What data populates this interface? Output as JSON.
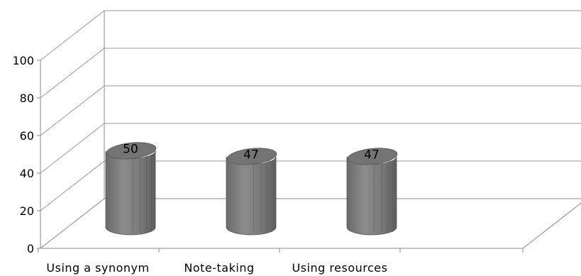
{
  "chart_data": {
    "type": "bar",
    "style": "3d-cylinder",
    "categories": [
      "Using a synonym",
      "Note-taking",
      "Using resources"
    ],
    "values": [
      50,
      47,
      47
    ],
    "data_labels": [
      "50",
      "47",
      "47"
    ],
    "ylim": [
      0,
      100
    ],
    "yticks": [
      "0",
      "20",
      "40",
      "60",
      "80",
      "100"
    ],
    "grid": true,
    "legend": "none",
    "bar_color": "#808080"
  }
}
